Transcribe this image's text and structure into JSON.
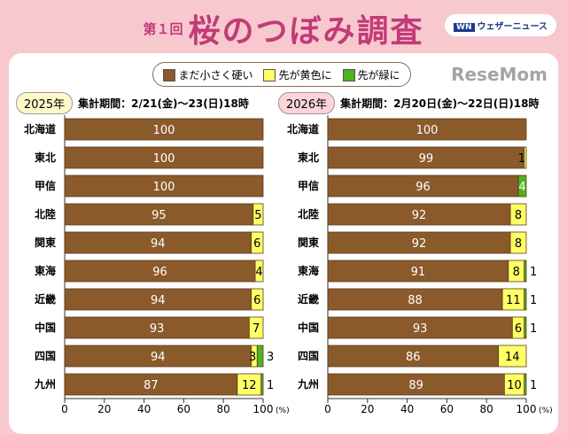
{
  "header": {
    "pre": "第１回",
    "title": "桜のつぼみ調査",
    "logo": "ウェザーニュース",
    "logo_mark": "WN"
  },
  "legend": [
    {
      "label": "まだ小さく硬い",
      "color": "#8b5a2b"
    },
    {
      "label": "先が黄色に",
      "color": "#ffff66"
    },
    {
      "label": "先が緑に",
      "color": "#4cb320"
    }
  ],
  "watermark": "ReseMom",
  "chart_data": [
    {
      "type": "bar",
      "stacked": true,
      "orientation": "horizontal",
      "year_label": "2025年",
      "period": "集計期間：2/21(金)～23(日)18時",
      "categories": [
        "北海道",
        "東北",
        "甲信",
        "北陸",
        "関東",
        "東海",
        "近畿",
        "中国",
        "四国",
        "九州"
      ],
      "series": [
        {
          "name": "まだ小さく硬い",
          "values": [
            100,
            100,
            100,
            95,
            94,
            96,
            94,
            93,
            94,
            87
          ]
        },
        {
          "name": "先が黄色に",
          "values": [
            0,
            0,
            0,
            5,
            6,
            4,
            6,
            7,
            3,
            12
          ]
        },
        {
          "name": "先が緑に",
          "values": [
            0,
            0,
            0,
            0,
            0,
            0,
            0,
            0,
            3,
            1
          ]
        }
      ],
      "xlim": [
        0,
        100
      ],
      "xticks": [
        "0",
        "20",
        "40",
        "60",
        "80",
        "100"
      ],
      "xunit": "(%)"
    },
    {
      "type": "bar",
      "stacked": true,
      "orientation": "horizontal",
      "year_label": "2026年",
      "period": "集計期間：2月20日(金)～22日(日)18時",
      "categories": [
        "北海道",
        "東北",
        "甲信",
        "北陸",
        "関東",
        "東海",
        "近畿",
        "中国",
        "四国",
        "九州"
      ],
      "series": [
        {
          "name": "まだ小さく硬い",
          "values": [
            100,
            99,
            96,
            92,
            92,
            91,
            88,
            93,
            86,
            89
          ]
        },
        {
          "name": "先が黄色に",
          "values": [
            0,
            1,
            0,
            8,
            8,
            8,
            11,
            6,
            14,
            10
          ]
        },
        {
          "name": "先が緑に",
          "values": [
            0,
            0,
            4,
            0,
            0,
            1,
            1,
            1,
            0,
            1
          ]
        }
      ],
      "xlim": [
        0,
        100
      ],
      "xticks": [
        "0",
        "20",
        "40",
        "60",
        "80",
        "100"
      ],
      "xunit": "(%)"
    }
  ]
}
